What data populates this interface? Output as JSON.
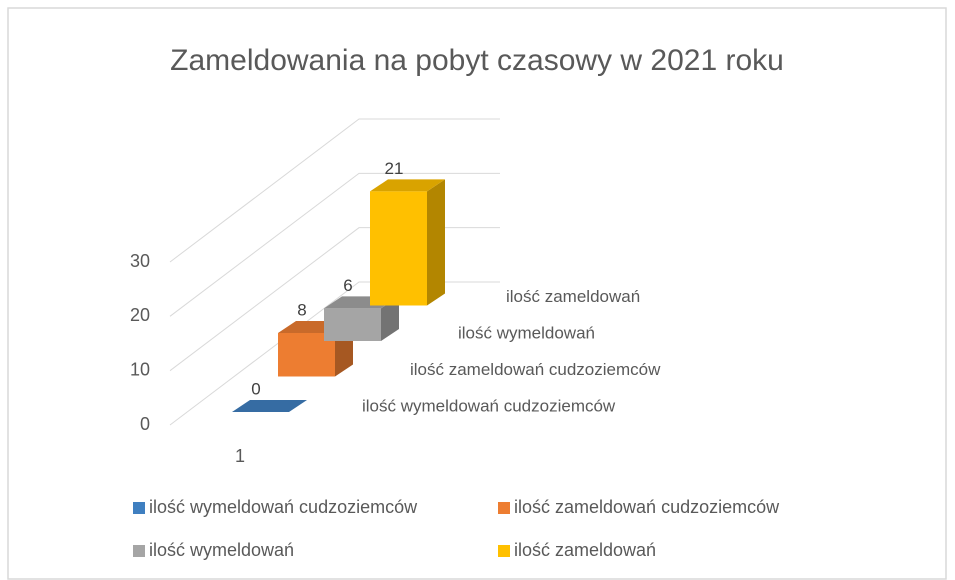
{
  "chart_data": {
    "type": "bar",
    "title": "Zameldowania na pobyt czasowy w 2021 roku",
    "categories": [
      "1"
    ],
    "series": [
      {
        "name": "ilość wymeldowań cudzoziemców",
        "color": "#3f7fc0",
        "values": [
          0
        ]
      },
      {
        "name": "ilość zameldowań cudzoziemców",
        "color": "#ed7d31",
        "values": [
          8
        ]
      },
      {
        "name": "ilość wymeldowań",
        "color": "#a5a5a5",
        "values": [
          6
        ]
      },
      {
        "name": "ilość zameldowań",
        "color": "#ffc000",
        "values": [
          21
        ]
      }
    ],
    "ylim": [
      0,
      30
    ],
    "yticks": [
      0,
      10,
      20,
      30
    ],
    "grid": true
  }
}
